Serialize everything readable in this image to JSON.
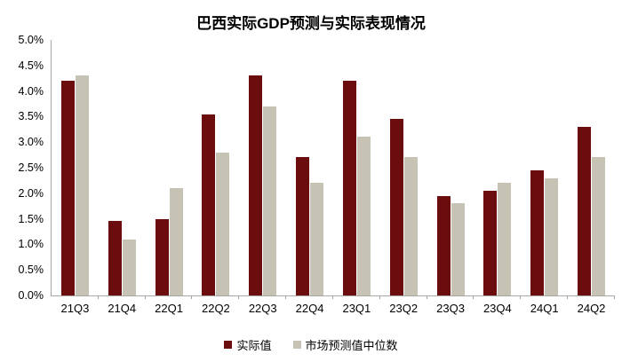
{
  "title": "巴西实际GDP预测与实际表现情况",
  "colors": {
    "actual": "#6b0d0f",
    "forecast": "#c6c3b4",
    "axis": "#a6a6a6",
    "text": "#000000"
  },
  "chart_data": {
    "type": "bar",
    "title": "巴西实际GDP预测与实际表现情况",
    "categories": [
      "21Q3",
      "21Q4",
      "22Q1",
      "22Q2",
      "22Q3",
      "22Q4",
      "23Q1",
      "23Q2",
      "23Q3",
      "23Q4",
      "24Q1",
      "24Q2"
    ],
    "series": [
      {
        "name": "实际值",
        "color": "#6b0d0f",
        "values": [
          4.2,
          1.45,
          1.5,
          3.55,
          4.3,
          2.7,
          4.2,
          3.45,
          1.95,
          2.05,
          2.45,
          3.3
        ]
      },
      {
        "name": "市场预测值中位数",
        "color": "#c6c3b4",
        "values": [
          4.3,
          1.1,
          2.1,
          2.8,
          3.7,
          2.2,
          3.1,
          2.7,
          1.8,
          2.2,
          2.3,
          2.7
        ]
      }
    ],
    "xlabel": "",
    "ylabel": "",
    "ylim": [
      0,
      5
    ],
    "ytick_step": 0.5,
    "ytick_labels": [
      "5.0%",
      "4.5%",
      "4.0%",
      "3.5%",
      "3.0%",
      "2.5%",
      "2.0%",
      "1.5%",
      "1.0%",
      "0.5%",
      "0.0%"
    ],
    "grid": false,
    "legend_position": "bottom"
  }
}
